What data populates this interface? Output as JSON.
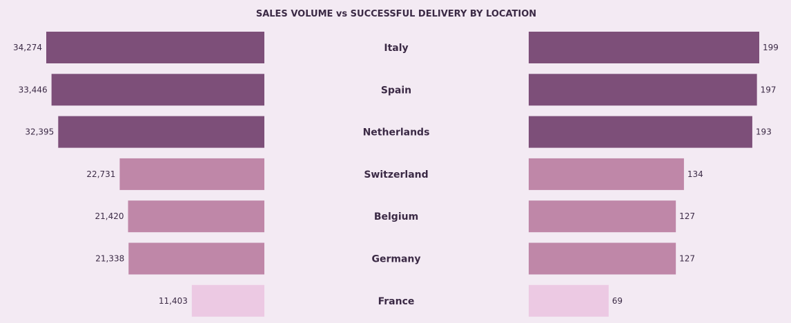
{
  "chart_data": {
    "type": "bar",
    "title": "SALES VOLUME vs SUCCESSFUL DELIVERY BY LOCATION",
    "categories": [
      "Italy",
      "Spain",
      "Netherlands",
      "Switzerland",
      "Belgium",
      "Germany",
      "France"
    ],
    "series": [
      {
        "values": [
          34274,
          33446,
          32395,
          22731,
          21420,
          21338,
          11403
        ],
        "labels": [
          "34,274",
          "33,446",
          "32,395",
          "22,731",
          "21,420",
          "21,338",
          "11,403"
        ]
      },
      {
        "values": [
          199,
          197,
          193,
          134,
          127,
          127,
          69
        ],
        "labels": [
          "199",
          "197",
          "193",
          "134",
          "127",
          "127",
          "69"
        ]
      }
    ],
    "colors": {
      "high": "#7d4f79",
      "mid": "#bf87a8",
      "low": "#ecc9e3",
      "background": "#f3eaf3",
      "text": "#3b2a45"
    }
  }
}
